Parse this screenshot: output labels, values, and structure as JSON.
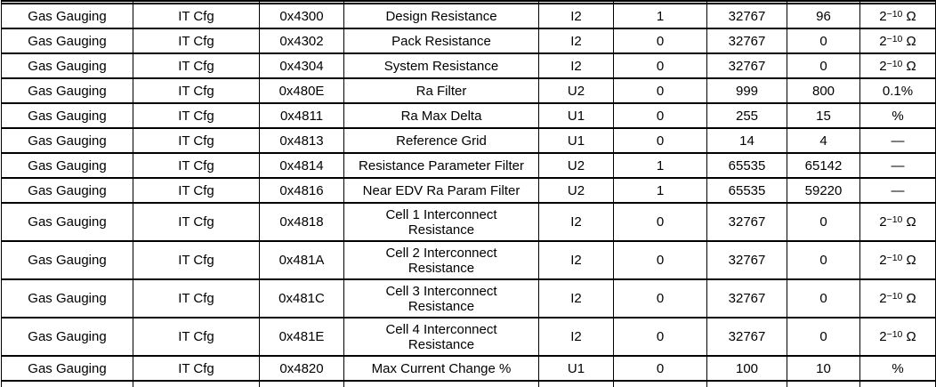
{
  "colors": {
    "background": "#ffffff",
    "border": "#000000",
    "text": "#000000"
  },
  "table": {
    "rows": [
      {
        "class": "Gas Gauging",
        "subclass": "IT Cfg",
        "address": "0x4300",
        "name": "Design Resistance",
        "type": "I2",
        "min": "1",
        "max": "32767",
        "default": "96",
        "unit": {
          "base": "2",
          "sup": "−10",
          "tail": " Ω"
        }
      },
      {
        "class": "Gas Gauging",
        "subclass": "IT Cfg",
        "address": "0x4302",
        "name": "Pack Resistance",
        "type": "I2",
        "min": "0",
        "max": "32767",
        "default": "0",
        "unit": {
          "base": "2",
          "sup": "−10",
          "tail": " Ω"
        }
      },
      {
        "class": "Gas Gauging",
        "subclass": "IT Cfg",
        "address": "0x4304",
        "name": "System Resistance",
        "type": "I2",
        "min": "0",
        "max": "32767",
        "default": "0",
        "unit": {
          "base": "2",
          "sup": "−10",
          "tail": " Ω"
        }
      },
      {
        "class": "Gas Gauging",
        "subclass": "IT Cfg",
        "address": "0x480E",
        "name": "Ra Filter",
        "type": "U2",
        "min": "0",
        "max": "999",
        "default": "800",
        "unit": {
          "base": "0.1%",
          "sup": "",
          "tail": ""
        }
      },
      {
        "class": "Gas Gauging",
        "subclass": "IT Cfg",
        "address": "0x4811",
        "name": "Ra Max Delta",
        "type": "U1",
        "min": "0",
        "max": "255",
        "default": "15",
        "unit": {
          "base": "%",
          "sup": "",
          "tail": ""
        }
      },
      {
        "class": "Gas Gauging",
        "subclass": "IT Cfg",
        "address": "0x4813",
        "name": "Reference Grid",
        "type": "U1",
        "min": "0",
        "max": "14",
        "default": "4",
        "unit": {
          "base": "—",
          "sup": "",
          "tail": ""
        }
      },
      {
        "class": "Gas Gauging",
        "subclass": "IT Cfg",
        "address": "0x4814",
        "name": "Resistance Parameter Filter",
        "type": "U2",
        "min": "1",
        "max": "65535",
        "default": "65142",
        "unit": {
          "base": "—",
          "sup": "",
          "tail": ""
        }
      },
      {
        "class": "Gas Gauging",
        "subclass": "IT Cfg",
        "address": "0x4816",
        "name": "Near EDV Ra Param Filter",
        "type": "U2",
        "min": "1",
        "max": "65535",
        "default": "59220",
        "unit": {
          "base": "—",
          "sup": "",
          "tail": ""
        }
      },
      {
        "class": "Gas Gauging",
        "subclass": "IT Cfg",
        "address": "0x4818",
        "name": "Cell 1 Interconnect\nResistance",
        "type": "I2",
        "min": "0",
        "max": "32767",
        "default": "0",
        "unit": {
          "base": "2",
          "sup": "−10",
          "tail": " Ω"
        }
      },
      {
        "class": "Gas Gauging",
        "subclass": "IT Cfg",
        "address": "0x481A",
        "name": "Cell 2 Interconnect\nResistance",
        "type": "I2",
        "min": "0",
        "max": "32767",
        "default": "0",
        "unit": {
          "base": "2",
          "sup": "−10",
          "tail": " Ω"
        }
      },
      {
        "class": "Gas Gauging",
        "subclass": "IT Cfg",
        "address": "0x481C",
        "name": "Cell 3 Interconnect\nResistance",
        "type": "I2",
        "min": "0",
        "max": "32767",
        "default": "0",
        "unit": {
          "base": "2",
          "sup": "−10",
          "tail": " Ω"
        }
      },
      {
        "class": "Gas Gauging",
        "subclass": "IT Cfg",
        "address": "0x481E",
        "name": "Cell 4 Interconnect\nResistance",
        "type": "I2",
        "min": "0",
        "max": "32767",
        "default": "0",
        "unit": {
          "base": "2",
          "sup": "−10",
          "tail": " Ω"
        }
      },
      {
        "class": "Gas Gauging",
        "subclass": "IT Cfg",
        "address": "0x4820",
        "name": "Max Current Change %",
        "type": "U1",
        "min": "0",
        "max": "100",
        "default": "10",
        "unit": {
          "base": "%",
          "sup": "",
          "tail": ""
        }
      }
    ]
  }
}
